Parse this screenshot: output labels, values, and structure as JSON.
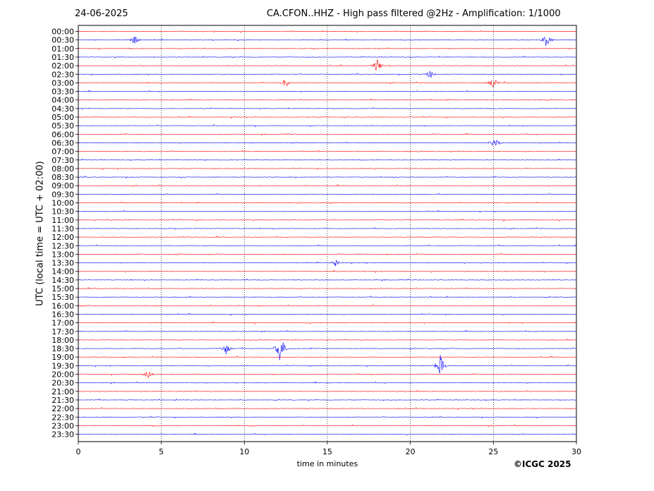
{
  "header": {
    "date": "24-06-2025",
    "title": "CA.CFON..HHZ - High pass filtered @2Hz - Amplification: 1/1000"
  },
  "footer": {
    "copyright": "©ICGC 2025"
  },
  "chart_data": {
    "type": "line",
    "xlabel": "time in minutes",
    "ylabel": "UTC (local time = UTC + 02:00)",
    "xlim": [
      0,
      30
    ],
    "x_ticks": [
      0,
      5,
      10,
      15,
      20,
      25,
      30
    ],
    "x_tick_labels": [
      "0",
      "5",
      "10",
      "15",
      "20",
      "25",
      "30"
    ],
    "grid": "vertical dotted at each x tick",
    "series_colors": [
      "#ff0000",
      "#0000ff"
    ],
    "y_tick_labels": [
      "00:00",
      "00:30",
      "01:00",
      "01:30",
      "02:00",
      "02:30",
      "03:00",
      "03:30",
      "04:00",
      "04:30",
      "05:00",
      "05:30",
      "06:00",
      "06:30",
      "07:00",
      "07:30",
      "08:00",
      "08:30",
      "09:00",
      "09:30",
      "10:00",
      "10:30",
      "11:00",
      "11:30",
      "12:00",
      "12:30",
      "13:00",
      "13:30",
      "14:00",
      "14:30",
      "15:00",
      "15:30",
      "16:00",
      "16:30",
      "17:00",
      "17:30",
      "18:00",
      "18:30",
      "19:00",
      "19:30",
      "20:00",
      "20:30",
      "21:00",
      "21:30",
      "22:00",
      "22:30",
      "23:00",
      "23:30"
    ],
    "events": [
      {
        "row": "00:30",
        "minute": 3.4,
        "amplitude": 0.35
      },
      {
        "row": "00:30",
        "minute": 28.2,
        "amplitude": 0.5
      },
      {
        "row": "02:00",
        "minute": 18.0,
        "amplitude": 0.5
      },
      {
        "row": "02:30",
        "minute": 21.2,
        "amplitude": 0.3
      },
      {
        "row": "03:00",
        "minute": 12.5,
        "amplitude": 0.3
      },
      {
        "row": "03:00",
        "minute": 25.0,
        "amplitude": 0.4
      },
      {
        "row": "06:30",
        "minute": 25.1,
        "amplitude": 0.45
      },
      {
        "row": "13:30",
        "minute": 15.5,
        "amplitude": 0.25
      },
      {
        "row": "18:30",
        "minute": 8.9,
        "amplitude": 0.4
      },
      {
        "row": "18:30",
        "minute": 12.2,
        "amplitude": 1.2
      },
      {
        "row": "19:30",
        "minute": 21.8,
        "amplitude": 0.9
      },
      {
        "row": "20:00",
        "minute": 4.2,
        "amplitude": 0.35
      }
    ]
  }
}
